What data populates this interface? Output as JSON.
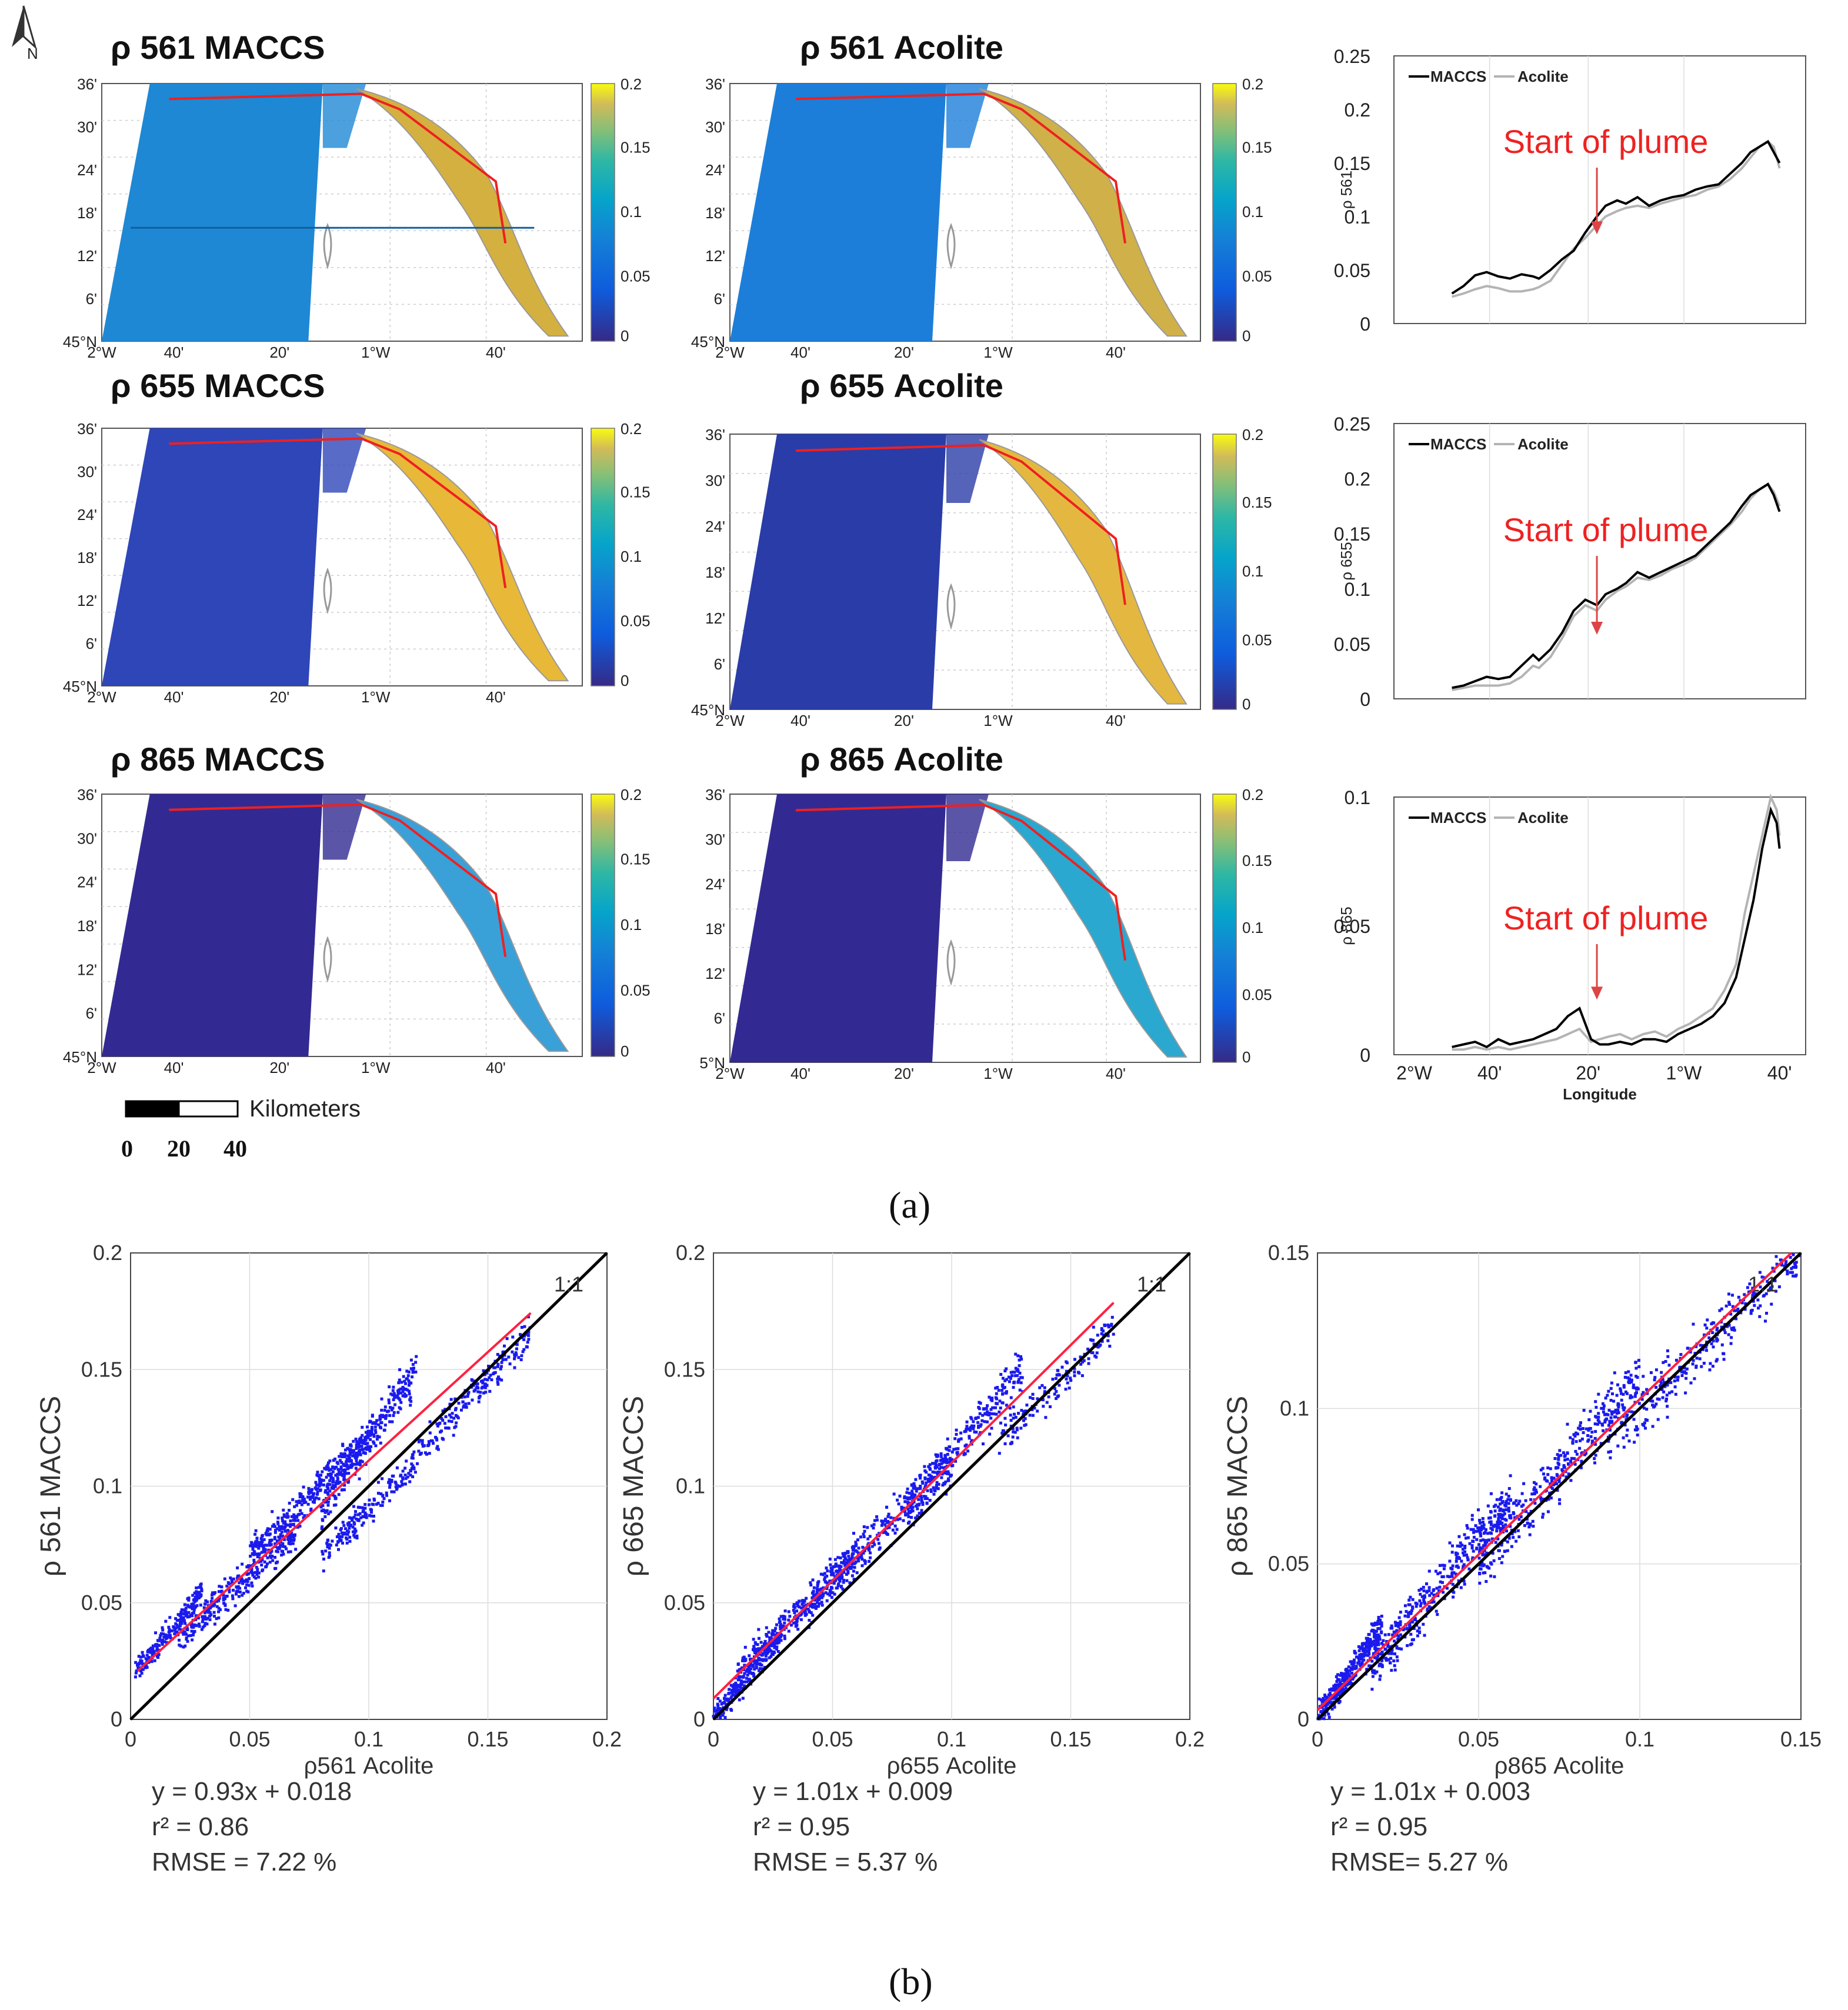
{
  "north_label": "N",
  "maps": [
    {
      "title": "ρ 561 MACCS",
      "band": "561"
    },
    {
      "title": "ρ 561 Acolite",
      "band": "561"
    },
    {
      "title": "ρ 655 MACCS",
      "band": "655"
    },
    {
      "title": "ρ 655 Acolite",
      "band": "655"
    },
    {
      "title": "ρ 865 MACCS",
      "band": "865"
    },
    {
      "title": "ρ  865 Acolite",
      "band": "865"
    }
  ],
  "map_axes": {
    "lat_ticks": [
      "36'",
      "30'",
      "24'",
      "18'",
      "12'",
      "6'",
      "45°N"
    ],
    "lat_tick_alt": "5°N",
    "lon_ticks": [
      "2°W",
      "40'",
      "20'",
      "1°W",
      "40'"
    ]
  },
  "colorbar_ticks": [
    "0.2",
    "0.15",
    "0.1",
    "0.05",
    "0"
  ],
  "scale_bar": {
    "unit": "Kilometers",
    "labels": [
      "0",
      "20",
      "40"
    ]
  },
  "colors": {
    "maccs_line": "#000000",
    "acolite_line": "#b4b4b4",
    "transect": "#ee2020",
    "scatter_points": "#1a1aee",
    "fit_line": "#ff2040",
    "one_to_one": "#000000"
  },
  "profiles": [
    {
      "ylabel": "ρ 561",
      "legend": [
        "MACCS",
        "Acolite"
      ],
      "annotation": "Start of plume"
    },
    {
      "ylabel": "ρ 655",
      "legend": [
        "MACCS",
        "Acolite"
      ],
      "annotation": "Start of plume"
    },
    {
      "ylabel": "ρ 865",
      "legend": [
        "MACCS",
        "Acolite"
      ],
      "annotation": "Start of plume",
      "xlabel": "Longitude"
    }
  ],
  "chart_data": [
    {
      "type": "line",
      "title": "",
      "ylabel": "ρ 561",
      "xlabel": "",
      "xlim": [
        -2.0,
        -0.58
      ],
      "ylim": [
        0,
        0.25
      ],
      "yticks": [
        "0.25",
        "0.2",
        "0.15",
        "0.1",
        "0.05",
        "0"
      ],
      "xticks": [],
      "annotation": {
        "text": "Start of plume",
        "x": -1.3,
        "y": 0.08
      },
      "series": [
        {
          "name": "MACCS",
          "x": [
            -1.8,
            -1.76,
            -1.72,
            -1.68,
            -1.64,
            -1.6,
            -1.56,
            -1.52,
            -1.5,
            -1.46,
            -1.42,
            -1.38,
            -1.34,
            -1.3,
            -1.27,
            -1.23,
            -1.2,
            -1.16,
            -1.12,
            -1.08,
            -1.04,
            -1.0,
            -0.96,
            -0.92,
            -0.88,
            -0.84,
            -0.8,
            -0.77,
            -0.74,
            -0.71,
            -0.69,
            -0.67
          ],
          "y": [
            0.028,
            0.035,
            0.045,
            0.048,
            0.044,
            0.042,
            0.046,
            0.044,
            0.042,
            0.05,
            0.06,
            0.068,
            0.085,
            0.1,
            0.11,
            0.115,
            0.112,
            0.118,
            0.11,
            0.115,
            0.118,
            0.12,
            0.125,
            0.128,
            0.13,
            0.14,
            0.15,
            0.16,
            0.165,
            0.17,
            0.16,
            0.15
          ]
        },
        {
          "name": "Acolite",
          "x": [
            -1.8,
            -1.76,
            -1.72,
            -1.68,
            -1.64,
            -1.6,
            -1.56,
            -1.52,
            -1.5,
            -1.46,
            -1.42,
            -1.38,
            -1.34,
            -1.3,
            -1.27,
            -1.23,
            -1.2,
            -1.16,
            -1.12,
            -1.08,
            -1.04,
            -1.0,
            -0.96,
            -0.92,
            -0.88,
            -0.84,
            -0.8,
            -0.77,
            -0.74,
            -0.71,
            -0.69,
            -0.67
          ],
          "y": [
            0.025,
            0.028,
            0.032,
            0.035,
            0.033,
            0.03,
            0.03,
            0.032,
            0.034,
            0.04,
            0.055,
            0.07,
            0.08,
            0.092,
            0.1,
            0.105,
            0.108,
            0.11,
            0.108,
            0.112,
            0.115,
            0.118,
            0.12,
            0.125,
            0.128,
            0.135,
            0.145,
            0.155,
            0.165,
            0.17,
            0.165,
            0.145
          ]
        }
      ]
    },
    {
      "type": "line",
      "title": "",
      "ylabel": "ρ 655",
      "xlabel": "",
      "xlim": [
        -2.0,
        -0.58
      ],
      "ylim": [
        0,
        0.25
      ],
      "yticks": [
        "0.25",
        "0.2",
        "0.15",
        "0.1",
        "0.05",
        "0"
      ],
      "xticks": [],
      "annotation": {
        "text": "Start of plume",
        "x": -1.3,
        "y": 0.055
      },
      "series": [
        {
          "name": "MACCS",
          "x": [
            -1.8,
            -1.76,
            -1.72,
            -1.68,
            -1.64,
            -1.6,
            -1.56,
            -1.52,
            -1.5,
            -1.46,
            -1.42,
            -1.38,
            -1.34,
            -1.3,
            -1.27,
            -1.23,
            -1.2,
            -1.16,
            -1.12,
            -1.08,
            -1.04,
            -1.0,
            -0.96,
            -0.92,
            -0.88,
            -0.84,
            -0.8,
            -0.77,
            -0.74,
            -0.71,
            -0.69,
            -0.67
          ],
          "y": [
            0.01,
            0.012,
            0.016,
            0.02,
            0.018,
            0.02,
            0.03,
            0.04,
            0.035,
            0.045,
            0.06,
            0.08,
            0.09,
            0.085,
            0.095,
            0.1,
            0.105,
            0.115,
            0.11,
            0.115,
            0.12,
            0.125,
            0.13,
            0.14,
            0.15,
            0.16,
            0.175,
            0.185,
            0.19,
            0.195,
            0.185,
            0.17
          ]
        },
        {
          "name": "Acolite",
          "x": [
            -1.8,
            -1.76,
            -1.72,
            -1.68,
            -1.64,
            -1.6,
            -1.56,
            -1.52,
            -1.5,
            -1.46,
            -1.42,
            -1.38,
            -1.34,
            -1.3,
            -1.27,
            -1.23,
            -1.2,
            -1.16,
            -1.12,
            -1.08,
            -1.04,
            -1.0,
            -0.96,
            -0.92,
            -0.88,
            -0.84,
            -0.8,
            -0.77,
            -0.74,
            -0.71,
            -0.69,
            -0.67
          ],
          "y": [
            0.008,
            0.01,
            0.012,
            0.012,
            0.012,
            0.014,
            0.02,
            0.03,
            0.028,
            0.038,
            0.055,
            0.075,
            0.085,
            0.08,
            0.09,
            0.098,
            0.102,
            0.11,
            0.108,
            0.112,
            0.118,
            0.122,
            0.128,
            0.138,
            0.148,
            0.158,
            0.17,
            0.182,
            0.19,
            0.195,
            0.188,
            0.175
          ]
        }
      ]
    },
    {
      "type": "line",
      "title": "",
      "ylabel": "ρ 865",
      "xlabel": "Longitude",
      "xlim": [
        -2.0,
        -0.58
      ],
      "ylim": [
        0,
        0.1
      ],
      "yticks": [
        "0.1",
        "0.05",
        "0"
      ],
      "xticks": [
        "2°W",
        "40'",
        "20'",
        "1°W",
        "40'"
      ],
      "annotation": {
        "text": "Start of plume",
        "x": -1.3,
        "y": 0.02
      },
      "series": [
        {
          "name": "MACCS",
          "x": [
            -1.8,
            -1.76,
            -1.72,
            -1.68,
            -1.64,
            -1.6,
            -1.56,
            -1.52,
            -1.48,
            -1.44,
            -1.4,
            -1.36,
            -1.32,
            -1.29,
            -1.26,
            -1.22,
            -1.18,
            -1.14,
            -1.1,
            -1.06,
            -1.02,
            -0.98,
            -0.94,
            -0.9,
            -0.86,
            -0.82,
            -0.79,
            -0.76,
            -0.73,
            -0.7,
            -0.68,
            -0.67
          ],
          "y": [
            0.003,
            0.004,
            0.005,
            0.003,
            0.006,
            0.004,
            0.005,
            0.006,
            0.008,
            0.01,
            0.015,
            0.018,
            0.006,
            0.004,
            0.004,
            0.005,
            0.004,
            0.006,
            0.006,
            0.005,
            0.008,
            0.01,
            0.012,
            0.015,
            0.02,
            0.03,
            0.045,
            0.06,
            0.08,
            0.095,
            0.09,
            0.08
          ]
        },
        {
          "name": "Acolite",
          "x": [
            -1.8,
            -1.76,
            -1.72,
            -1.68,
            -1.64,
            -1.6,
            -1.56,
            -1.52,
            -1.48,
            -1.44,
            -1.4,
            -1.36,
            -1.32,
            -1.29,
            -1.26,
            -1.22,
            -1.18,
            -1.14,
            -1.1,
            -1.06,
            -1.02,
            -0.98,
            -0.94,
            -0.9,
            -0.86,
            -0.82,
            -0.79,
            -0.76,
            -0.73,
            -0.7,
            -0.68,
            -0.67
          ],
          "y": [
            0.002,
            0.002,
            0.003,
            0.002,
            0.003,
            0.002,
            0.003,
            0.004,
            0.005,
            0.006,
            0.008,
            0.01,
            0.005,
            0.006,
            0.007,
            0.008,
            0.006,
            0.008,
            0.009,
            0.007,
            0.01,
            0.012,
            0.015,
            0.018,
            0.025,
            0.035,
            0.055,
            0.07,
            0.085,
            0.1,
            0.095,
            0.085
          ]
        }
      ]
    },
    {
      "type": "scatter",
      "title": "",
      "xlabel": "ρ561 Acolite",
      "ylabel": "ρ 561 MACCS",
      "xlim": [
        0,
        0.2
      ],
      "ylim": [
        0,
        0.2
      ],
      "xticks": [
        "0",
        "0.05",
        "0.1",
        "0.15",
        "0.2"
      ],
      "yticks": [
        "0",
        "0.05",
        "0.1",
        "0.15",
        "0.2"
      ],
      "one_to_one_label": "1:1",
      "fit": {
        "slope": 0.93,
        "intercept": 0.018,
        "x_range": [
          0.003,
          0.168
        ]
      },
      "stats": [
        "y = 0.93x + 0.018",
        "r² = 0.86",
        "RMSE = 7.22 %"
      ],
      "clusters": [
        {
          "x": [
            0.002,
            0.03
          ],
          "y": [
            0.02,
            0.055
          ],
          "n": 220
        },
        {
          "x": [
            0.02,
            0.07
          ],
          "y": [
            0.035,
            0.08
          ],
          "n": 300
        },
        {
          "x": [
            0.05,
            0.1
          ],
          "y": [
            0.07,
            0.12
          ],
          "n": 320
        },
        {
          "x": [
            0.08,
            0.12
          ],
          "y": [
            0.09,
            0.15
          ],
          "n": 280
        },
        {
          "x": [
            0.08,
            0.12
          ],
          "y": [
            0.07,
            0.11
          ],
          "n": 180
        },
        {
          "x": [
            0.12,
            0.168
          ],
          "y": [
            0.115,
            0.165
          ],
          "n": 200
        }
      ]
    },
    {
      "type": "scatter",
      "title": "",
      "xlabel": "ρ655 Acolite",
      "ylabel": "ρ 665 MACCS",
      "xlim": [
        0,
        0.2
      ],
      "ylim": [
        0,
        0.2
      ],
      "xticks": [
        "0",
        "0.05",
        "0.1",
        "0.15",
        "0.2"
      ],
      "yticks": [
        "0",
        "0.05",
        "0.1",
        "0.15",
        "0.2"
      ],
      "one_to_one_label": "1:1",
      "fit": {
        "slope": 1.01,
        "intercept": 0.009,
        "x_range": [
          0.0,
          0.168
        ]
      },
      "stats": [
        "y = 1.01x + 0.009",
        "r² = 0.95",
        "RMSE = 5.37 %"
      ],
      "clusters": [
        {
          "x": [
            0.0,
            0.03
          ],
          "y": [
            0.0,
            0.04
          ],
          "n": 250
        },
        {
          "x": [
            0.01,
            0.06
          ],
          "y": [
            0.02,
            0.07
          ],
          "n": 300
        },
        {
          "x": [
            0.04,
            0.1
          ],
          "y": [
            0.05,
            0.11
          ],
          "n": 320
        },
        {
          "x": [
            0.08,
            0.13
          ],
          "y": [
            0.09,
            0.15
          ],
          "n": 260
        },
        {
          "x": [
            0.12,
            0.168
          ],
          "y": [
            0.12,
            0.168
          ],
          "n": 150
        }
      ]
    },
    {
      "type": "scatter",
      "title": "",
      "xlabel": "ρ865 Acolite",
      "ylabel": "ρ 865 MACCS",
      "xlim": [
        0,
        0.15
      ],
      "ylim": [
        0,
        0.15
      ],
      "xticks": [
        "0",
        "0.05",
        "0.1",
        "0.15"
      ],
      "yticks": [
        "0",
        "0.05",
        "0.1",
        "0.15"
      ],
      "one_to_one_label": "1:1",
      "fit": {
        "slope": 1.01,
        "intercept": 0.003,
        "x_range": [
          0.0,
          0.147
        ]
      },
      "stats": [
        "y = 1.01x + 0.003",
        "r² = 0.95",
        "RMSE= 5.27 %"
      ],
      "clusters": [
        {
          "x": [
            0.0,
            0.02
          ],
          "y": [
            0.0,
            0.03
          ],
          "n": 350
        },
        {
          "x": [
            0.015,
            0.06
          ],
          "y": [
            0.015,
            0.07
          ],
          "n": 420
        },
        {
          "x": [
            0.05,
            0.1
          ],
          "y": [
            0.05,
            0.11
          ],
          "n": 380
        },
        {
          "x": [
            0.09,
            0.15
          ],
          "y": [
            0.09,
            0.15
          ],
          "n": 300
        }
      ]
    }
  ],
  "captions": {
    "a": "(a)",
    "b": "(b)"
  }
}
